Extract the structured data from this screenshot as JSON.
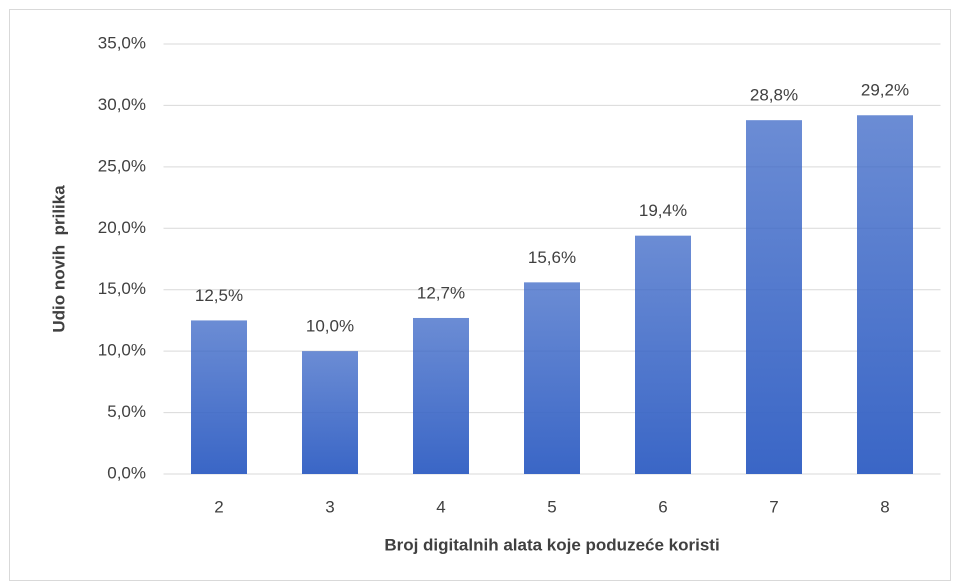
{
  "chart_data": {
    "type": "bar",
    "x_label": "Broj digitalnih alata koje poduzeće koristi",
    "y_label": "Udio novih  prilika",
    "categories": [
      "2",
      "3",
      "4",
      "5",
      "6",
      "7",
      "8"
    ],
    "values": [
      12.5,
      10.0,
      12.7,
      15.6,
      19.4,
      28.8,
      29.2
    ],
    "value_labels": [
      "12,5%",
      "10,0%",
      "12,7%",
      "15,6%",
      "19,4%",
      "28,8%",
      "29,2%"
    ],
    "color": "#3a66c6",
    "ylim": [
      0,
      35
    ],
    "yticks": [
      {
        "value": 0,
        "label": "0,0%"
      },
      {
        "value": 5,
        "label": "5,0%"
      },
      {
        "value": 10,
        "label": "10,0%"
      },
      {
        "value": 15,
        "label": "15,0%"
      },
      {
        "value": 20,
        "label": "20,0%"
      },
      {
        "value": 25,
        "label": "25,0%"
      },
      {
        "value": 30,
        "label": "30,0%"
      },
      {
        "value": 35,
        "label": "35,0%"
      }
    ],
    "grid": true
  }
}
